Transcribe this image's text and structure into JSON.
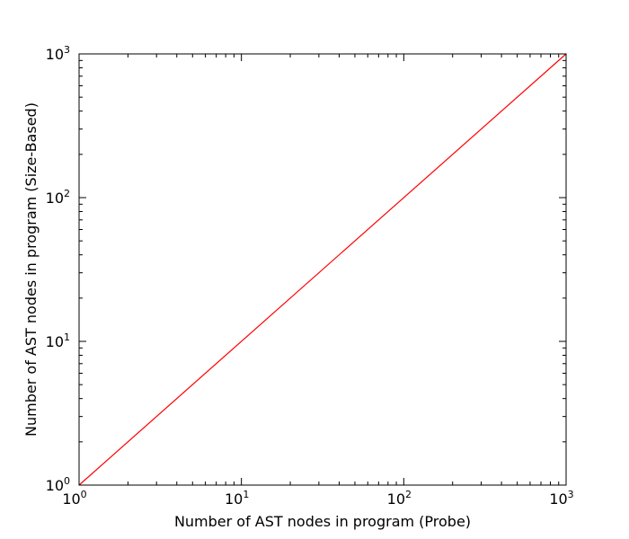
{
  "chart_data": {
    "type": "line",
    "title": "",
    "xlabel": "Number of AST nodes in program (Probe)",
    "ylabel": "Number of AST nodes in program (Size-Based)",
    "xscale": "log",
    "yscale": "log",
    "xlim": [
      1,
      1000
    ],
    "ylim": [
      1,
      1000
    ],
    "grid": false,
    "x_ticks": [
      {
        "base": "10",
        "exp": "0",
        "value": 1
      },
      {
        "base": "10",
        "exp": "1",
        "value": 10
      },
      {
        "base": "10",
        "exp": "2",
        "value": 100
      },
      {
        "base": "10",
        "exp": "3",
        "value": 1000
      }
    ],
    "y_ticks": [
      {
        "base": "10",
        "exp": "0",
        "value": 1
      },
      {
        "base": "10",
        "exp": "1",
        "value": 10
      },
      {
        "base": "10",
        "exp": "2",
        "value": 100
      },
      {
        "base": "10",
        "exp": "3",
        "value": 1000
      }
    ],
    "series": [
      {
        "color": "#ff0000",
        "x": [
          1,
          1000
        ],
        "y": [
          1,
          1000
        ]
      }
    ]
  }
}
